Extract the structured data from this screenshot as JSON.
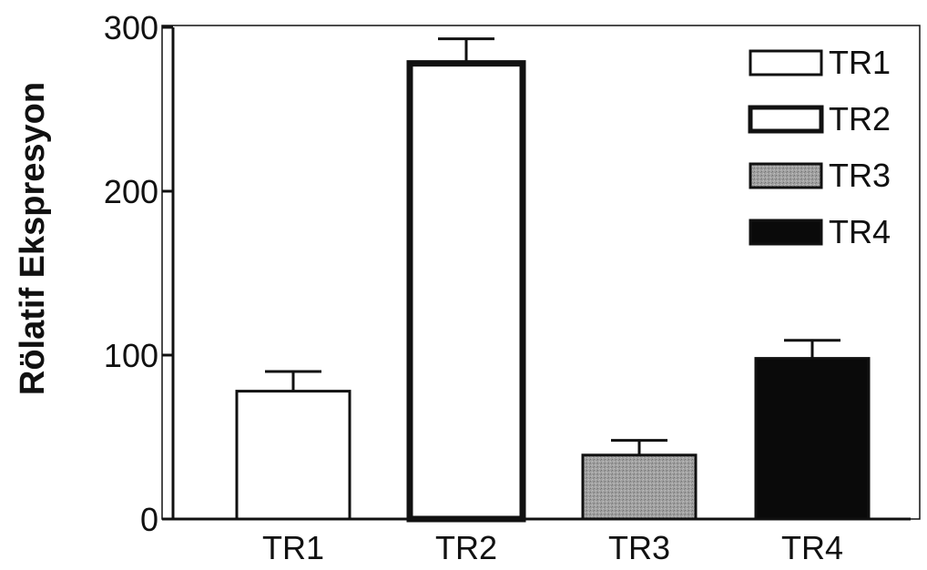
{
  "chart_data": {
    "type": "bar",
    "categories": [
      "TR1",
      "TR2",
      "TR3",
      "TR4"
    ],
    "values": [
      78,
      278,
      39,
      98
    ],
    "errors": [
      12,
      15,
      9,
      11
    ],
    "title": "",
    "xlabel": "",
    "ylabel": "Rölatif Ekspresyon",
    "ylim": [
      0,
      300
    ],
    "yticks": [
      "0",
      "100",
      "200",
      "300"
    ],
    "grid": false,
    "legend": {
      "placement": "top-right",
      "entries": [
        "TR1",
        "TR2",
        "TR3",
        "TR4"
      ]
    },
    "colors": [
      "#ffffff",
      "#ffffff",
      "#9a9a9a",
      "#0a0a0a"
    ]
  }
}
